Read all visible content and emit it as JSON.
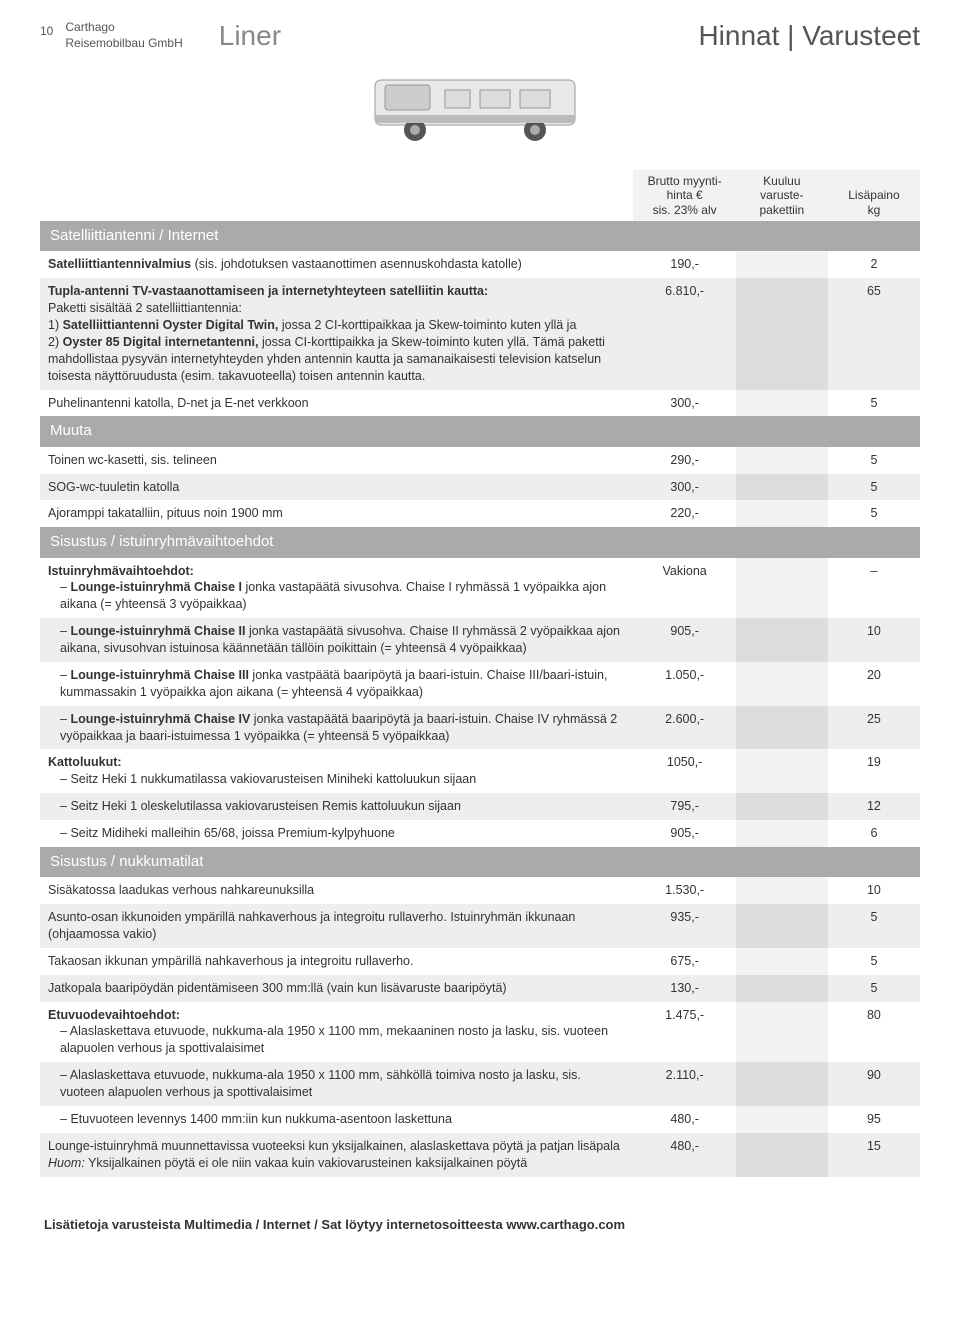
{
  "header": {
    "pagenum": "10",
    "company_line1": "Carthago",
    "company_line2": "Reisemobilbau GmbH",
    "product": "Liner",
    "title": "Hinnat | Varusteet"
  },
  "cols": {
    "price_l1": "Brutto myynti-",
    "price_l2": "hinta €",
    "price_l3": "sis. 23% alv",
    "incl_l1": "Kuuluu varuste-",
    "incl_l2": "pakettiin",
    "weight_l1": "Lisäpaino",
    "weight_l2": "kg"
  },
  "sections": [
    {
      "title": "Satelliittiantenni / Internet",
      "rows": [
        {
          "desc": "Satelliittiantennivalmius (sis. johdotuksen vastaanottimen asennuskohdasta katolle)",
          "bold_prefix": "Satelliittiantennivalmius",
          "price": "190,-",
          "incl": "",
          "weight": "2",
          "shade": false
        },
        {
          "desc_html": "<span class='bold'>Tupla-antenni TV-vastaanottamiseen ja internetyhteyteen satelliitin kautta:</span><br>Paketti sisältää 2 satelliittiantennia:<br>1) <span class='bold'>Satelliittiantenni Oyster Digital Twin,</span> jossa 2 CI-korttipaikkaa ja Skew-toiminto kuten yllä ja<br>2) <span class='bold'>Oyster 85 Digital internetantenni,</span> jossa CI-korttipaikka ja Skew-toiminto kuten yllä. Tämä paketti mahdollistaa pysyvän internetyhteyden yhden antennin kautta ja samanaikaisesti television katselun toisesta näyttöruudusta (esim. takavuoteella) toisen antennin kautta.",
          "price": "6.810,-",
          "incl": "",
          "weight": "65",
          "shade": true
        },
        {
          "desc": "Puhelinantenni katolla, D-net ja E-net verkkoon",
          "price": "300,-",
          "incl": "",
          "weight": "5",
          "shade": false
        }
      ]
    },
    {
      "title": "Muuta",
      "rows": [
        {
          "desc": "Toinen wc-kasetti, sis. telineen",
          "price": "290,-",
          "incl": "",
          "weight": "5",
          "shade": false
        },
        {
          "desc": "SOG-wc-tuuletin katolla",
          "price": "300,-",
          "incl": "",
          "weight": "5",
          "shade": true
        },
        {
          "desc": "Ajoramppi takatalliin, pituus noin 1900 mm",
          "price": "220,-",
          "incl": "",
          "weight": "5",
          "shade": false
        }
      ]
    },
    {
      "title": "Sisustus / istuinryhmävaihtoehdot",
      "rows": [
        {
          "desc_html": "<span class='bold'>Istuinryhmävaihtoehdot:</span><br><span class='indent dash'><span class='bold'>Lounge-istuinryhmä Chaise I</span> jonka vastapäätä sivusohva. Chaise I ryhmässä 1 vyöpaikka ajon aikana (= yhteensä 3 vyöpaikkaa)</span>",
          "price": "Vakiona",
          "incl": "",
          "weight": "–",
          "shade": false
        },
        {
          "desc_html": "<span class='indent dash'><span class='bold'>Lounge-istuinryhmä Chaise II</span> jonka vastapäätä sivusohva. Chaise II ryhmässä 2 vyöpaikkaa ajon aikana, sivusohvan istuinosa käännetään tällöin poikittain (= yhteensä 4 vyöpaikkaa)</span>",
          "price": "905,-",
          "incl": "",
          "weight": "10",
          "shade": true
        },
        {
          "desc_html": "<span class='indent dash'><span class='bold'>Lounge-istuinryhmä Chaise III</span> jonka vastpäätä baaripöytä ja baari-istuin. Chaise III/baari-istuin, kummassakin 1 vyöpaikka ajon aikana (= yhteensä 4 vyöpaikkaa)</span>",
          "price": "1.050,-",
          "incl": "",
          "weight": "20",
          "shade": false
        },
        {
          "desc_html": "<span class='indent dash'><span class='bold'>Lounge-istuinryhmä Chaise IV</span> jonka vastapäätä baaripöytä ja baari-istuin. Chaise IV ryhmässä 2 vyöpaikkaa ja baari-istuimessa 1 vyöpaikka (= yhteensä 5 vyöpaikkaa)</span>",
          "price": "2.600,-",
          "incl": "",
          "weight": "25",
          "shade": true
        },
        {
          "desc_html": "<span class='bold'>Kattoluukut:</span><br><span class='indent dash'>Seitz Heki 1 nukkumatilassa vakiovarusteisen Miniheki kattoluukun sijaan</span>",
          "price": "1050,-",
          "incl": "",
          "weight": "19",
          "shade": false
        },
        {
          "desc_html": "<span class='indent dash'>Seitz Heki 1 oleskelutilassa vakiovarusteisen Remis kattoluukun sijaan</span>",
          "price": "795,-",
          "incl": "",
          "weight": "12",
          "shade": true
        },
        {
          "desc_html": "<span class='indent dash'>Seitz Midiheki malleihin 65/68, joissa Premium-kylpyhuone</span>",
          "price": "905,-",
          "incl": "",
          "weight": "6",
          "shade": false
        }
      ]
    },
    {
      "title": "Sisustus / nukkumatilat",
      "rows": [
        {
          "desc": "Sisäkatossa laadukas verhous nahkareunuksilla",
          "price": "1.530,-",
          "incl": "",
          "weight": "10",
          "shade": false
        },
        {
          "desc": "Asunto-osan ikkunoiden ympärillä nahkaverhous ja integroitu rullaverho. Istuinryhmän ikkunaan (ohjaamossa vakio)",
          "price": "935,-",
          "incl": "",
          "weight": "5",
          "shade": true
        },
        {
          "desc": "Takaosan ikkunan ympärillä nahkaverhous ja integroitu rullaverho.",
          "price": "675,-",
          "incl": "",
          "weight": "5",
          "shade": false
        },
        {
          "desc": "Jatkopala baaripöydän pidentämiseen 300 mm:llä (vain kun lisävaruste baaripöytä)",
          "price": "130,-",
          "incl": "",
          "weight": "5",
          "shade": true
        },
        {
          "desc_html": "<span class='bold'>Etuvuodevaihtoehdot:</span><br><span class='indent dash'>Alaslaskettava etuvuode, nukkuma-ala 1950 x 1100 mm, mekaaninen nosto ja lasku, sis. vuoteen alapuolen verhous ja spottivalaisimet</span>",
          "price": "1.475,-",
          "incl": "",
          "weight": "80",
          "shade": false
        },
        {
          "desc_html": "<span class='indent dash'>Alaslaskettava etuvuode, nukkuma-ala 1950 x 1100 mm, sähköllä toimiva nosto ja lasku, sis. vuoteen alapuolen verhous ja spottivalaisimet</span>",
          "price": "2.110,-",
          "incl": "",
          "weight": "90",
          "shade": true
        },
        {
          "desc_html": "<span class='indent dash'>Etuvuoteen levennys 1400 mm:iin kun nukkuma-asentoon laskettuna</span>",
          "price": "480,-",
          "incl": "",
          "weight": "95",
          "shade": false
        },
        {
          "desc_html": "Lounge-istuinryhmä muunnettavissa vuoteeksi kun yksijalkainen, alaslaskettava pöytä ja patjan lisäpala<br><em class='note'>Huom:</em> Yksijalkainen pöytä ei ole niin vakaa kuin vakiovarusteinen kaksijalkainen pöytä",
          "price": "480,-",
          "incl": "",
          "weight": "15",
          "shade": true
        }
      ]
    }
  ],
  "footer": "Lisätietoja varusteista Multimedia / Internet / Sat löytyy internetosoitteesta www.carthago.com",
  "colors": {
    "section_bg": "#aaaaaa",
    "shade_bg": "#eeeeee",
    "incl_bg": "#dddddd"
  }
}
